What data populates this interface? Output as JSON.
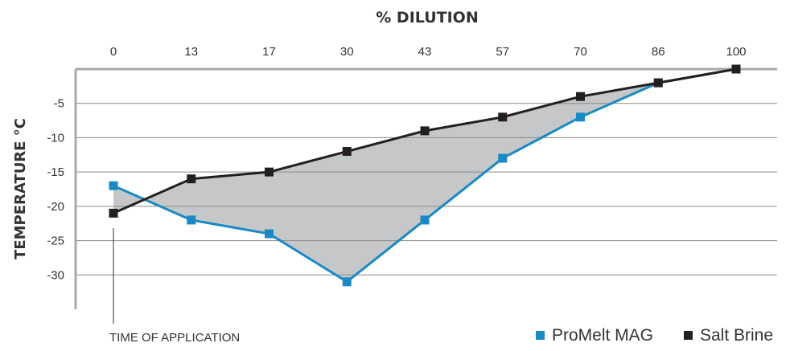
{
  "chart_data": {
    "type": "line",
    "title": "% DILUTION",
    "xlabel": "% DILUTION",
    "ylabel": "TEMPERATURE °C",
    "x": [
      0,
      13,
      17,
      30,
      43,
      57,
      70,
      86,
      100
    ],
    "x_tick_labels": [
      "0",
      "13",
      "17",
      "30",
      "43",
      "57",
      "70",
      "86",
      "100"
    ],
    "ylim": [
      -35,
      0
    ],
    "y_ticks": [
      -5,
      -10,
      -15,
      -20,
      -25,
      -30
    ],
    "y_tick_labels": [
      "-5",
      "-10",
      "-15",
      "-20",
      "-25",
      "-30"
    ],
    "grid": true,
    "shaded_between_series": true,
    "legend_position": "bottom-right",
    "annotation": "TIME OF APPLICATION",
    "series": [
      {
        "name": "ProMelt MAG",
        "color": "#1a8ac4",
        "values": [
          -17,
          -22,
          -24,
          -31,
          -22,
          -13,
          -7,
          -2,
          0
        ]
      },
      {
        "name": "Salt Brine",
        "color": "#231f20",
        "values": [
          -21,
          -16,
          -15,
          -12,
          -9,
          -7,
          -4,
          -2,
          0
        ]
      }
    ],
    "colors": {
      "fill": "#c6c7c9",
      "grid": "#8a8a8a",
      "axis": "#a7a9ac"
    }
  }
}
